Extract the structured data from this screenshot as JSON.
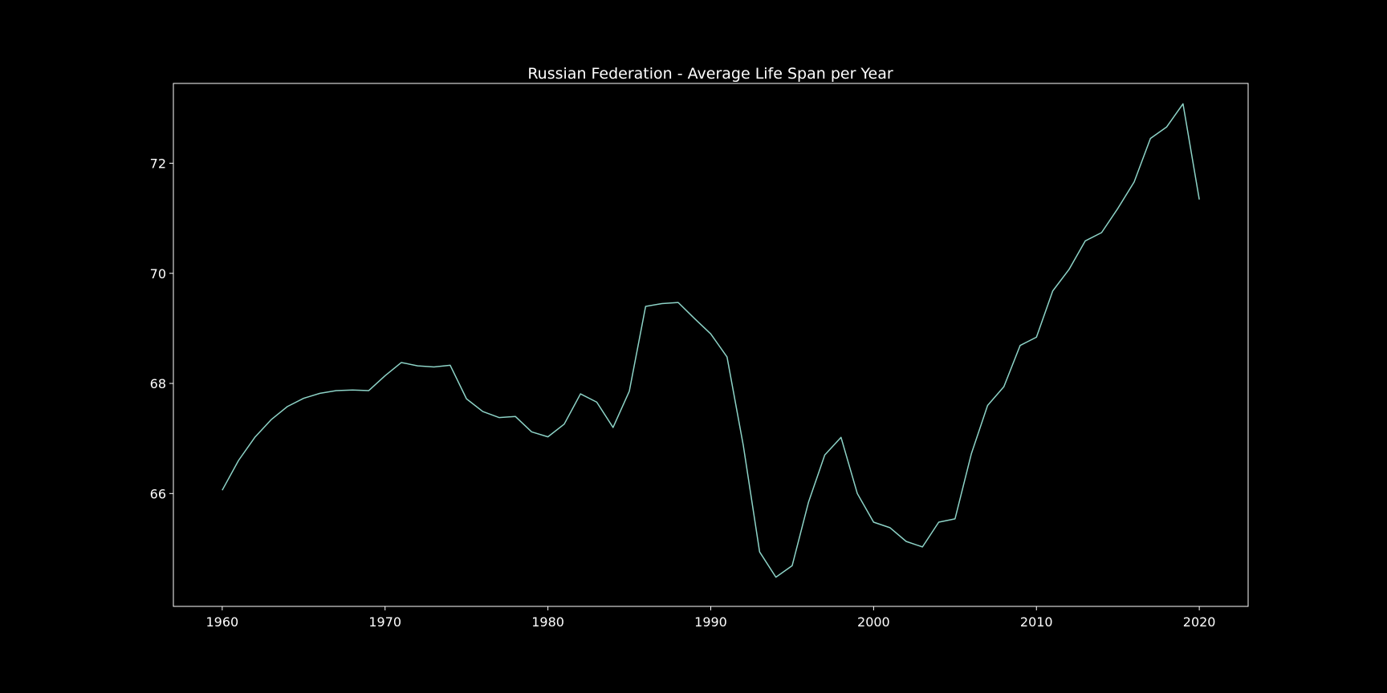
{
  "chart_data": {
    "type": "line",
    "title": "Russian Federation - Average Life Span per Year",
    "xlabel": "",
    "ylabel": "",
    "grid": false,
    "xlim": [
      1957,
      2023
    ],
    "ylim": [
      63.95,
      73.45
    ],
    "xticks": [
      1960,
      1970,
      1980,
      1990,
      2000,
      2010,
      2020
    ],
    "yticks": [
      66,
      68,
      70,
      72
    ],
    "colors": {
      "background": "#000000",
      "line": "#8dd3c7",
      "text": "#ffffff",
      "frame": "#ffffff"
    },
    "series": [
      {
        "x": [
          1960,
          1961,
          1962,
          1963,
          1964,
          1965,
          1966,
          1967,
          1968,
          1969,
          1970,
          1971,
          1972,
          1973,
          1974,
          1975,
          1976,
          1977,
          1978,
          1979,
          1980,
          1981,
          1982,
          1983,
          1984,
          1985,
          1986,
          1987,
          1988,
          1989,
          1990,
          1991,
          1992,
          1993,
          1994,
          1995,
          1996,
          1997,
          1998,
          1999,
          2000,
          2001,
          2002,
          2003,
          2004,
          2005,
          2006,
          2007,
          2008,
          2009,
          2010,
          2011,
          2012,
          2013,
          2014,
          2015,
          2016,
          2017,
          2018,
          2019,
          2020
        ],
        "values": [
          66.06,
          66.6,
          67.02,
          67.34,
          67.58,
          67.73,
          67.82,
          67.87,
          67.88,
          67.87,
          68.14,
          68.38,
          68.32,
          68.3,
          68.33,
          67.72,
          67.49,
          67.38,
          67.4,
          67.12,
          67.03,
          67.26,
          67.81,
          67.66,
          67.2,
          67.86,
          69.4,
          69.45,
          69.47,
          69.18,
          68.9,
          68.48,
          66.87,
          64.94,
          64.48,
          64.69,
          65.84,
          66.7,
          67.02,
          66.0,
          65.48,
          65.38,
          65.13,
          65.03,
          65.48,
          65.54,
          66.72,
          67.6,
          67.94,
          68.69,
          68.84,
          69.68,
          70.07,
          70.59,
          70.74,
          71.18,
          71.66,
          72.45,
          72.66,
          73.08,
          71.34
        ]
      }
    ]
  }
}
